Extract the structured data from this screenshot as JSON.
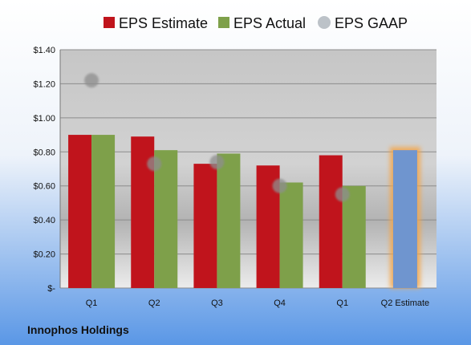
{
  "chart_data": {
    "type": "bar",
    "title": "",
    "xlabel": "",
    "ylabel": "",
    "ylim": [
      0,
      1.4
    ],
    "y_ticks": [
      0,
      0.2,
      0.4,
      0.6,
      0.8,
      1.0,
      1.2,
      1.4
    ],
    "y_tick_labels": [
      "$-",
      "$0.20",
      "$0.40",
      "$0.60",
      "$0.80",
      "$1.00",
      "$1.20",
      "$1.40"
    ],
    "categories": [
      "Q1",
      "Q2",
      "Q3",
      "Q4",
      "Q1",
      "Q2 Estimate"
    ],
    "series": [
      {
        "name": "EPS Estimate",
        "kind": "bar",
        "color": "#c0141c",
        "values": [
          0.9,
          0.89,
          0.73,
          0.72,
          0.78,
          null
        ]
      },
      {
        "name": "EPS Actual",
        "kind": "bar",
        "color": "#7ea04a",
        "values": [
          0.9,
          0.81,
          0.79,
          0.62,
          0.6,
          null
        ]
      },
      {
        "name": "EPS GAAP",
        "kind": "scatter",
        "color": "#a6acb2",
        "values": [
          1.22,
          0.73,
          0.74,
          0.6,
          0.55,
          null
        ]
      },
      {
        "name": "Q2 Estimate",
        "kind": "bar-highlight",
        "color": "#6f95cf",
        "glow_color": "#f4a64a",
        "values": [
          null,
          null,
          null,
          null,
          null,
          0.81
        ]
      }
    ],
    "legend_position": "top",
    "grid": true
  },
  "footer": {
    "company": "Innophos Holdings"
  }
}
